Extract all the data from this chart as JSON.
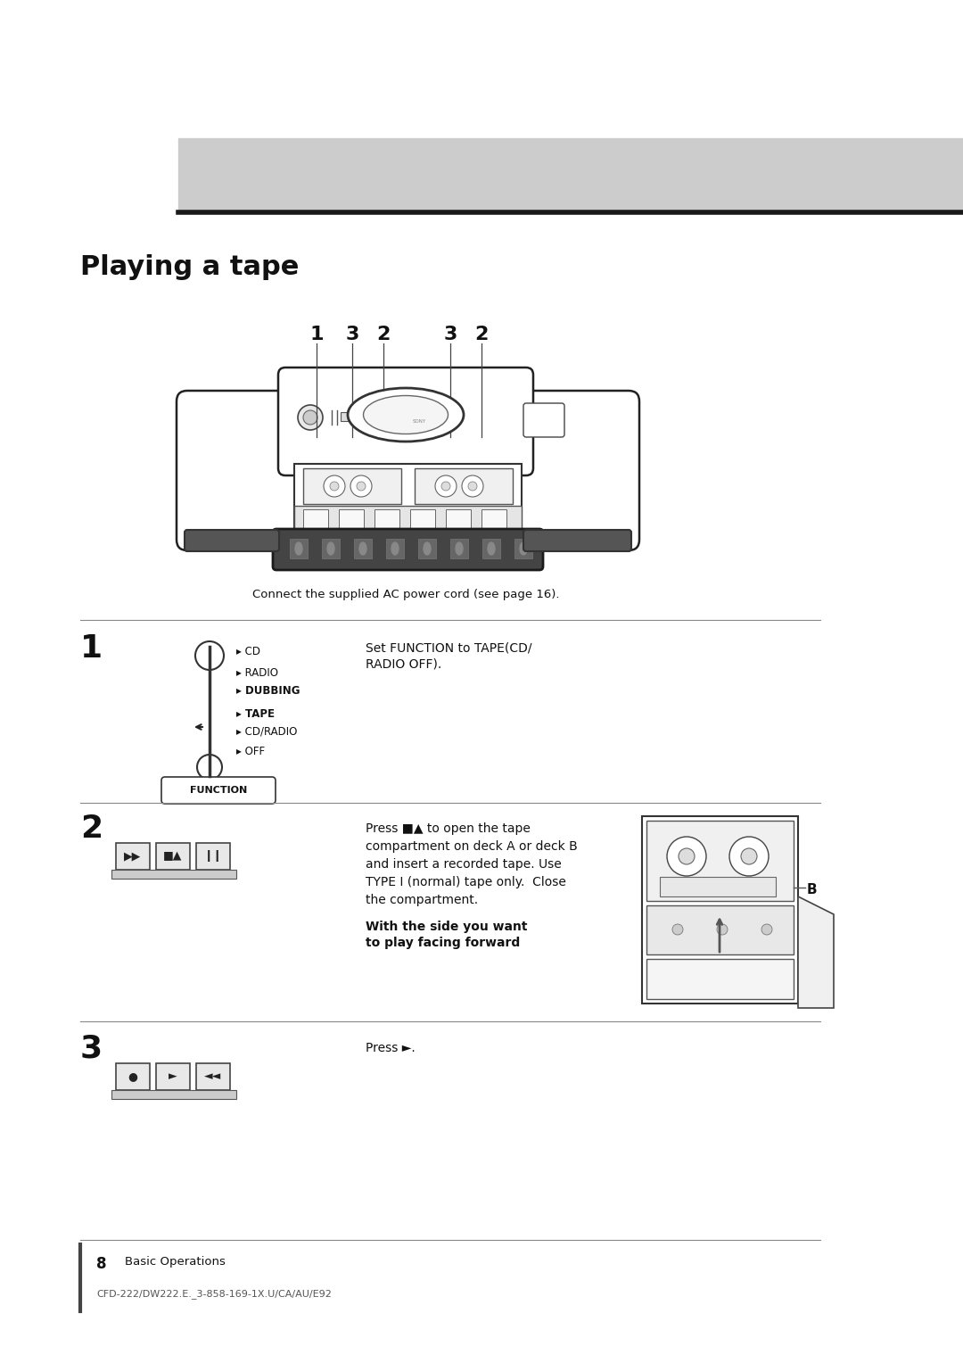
{
  "bg_color": "#ffffff",
  "page_width": 10.8,
  "page_height": 15.28,
  "header_band_color": "#cccccc",
  "header_line_color": "#1a1a1a",
  "title": "Playing a tape",
  "callout_numbers": [
    "1",
    "3",
    "2",
    "3",
    "2"
  ],
  "connect_text": "Connect the supplied AC power cord (see page 16).",
  "step1_text_line1": "Set FUNCTION to TAPE(CD/",
  "step1_text_line2": "RADIO OFF).",
  "step2_text_line1": "Press ■▲ to open the tape",
  "step2_text_line2": "compartment on deck A or deck B",
  "step2_text_line3": "and insert a recorded tape. Use",
  "step2_text_line4": "TYPE I (normal) tape only.  Close",
  "step2_text_line5": "the compartment.",
  "step2_bold_line1": "With the side you want",
  "step2_bold_line2": "to play facing forward",
  "step3_text": "Press ►.",
  "function_label": "FUNCTION",
  "function_options": [
    "CD",
    "RADIO",
    "DUBBING",
    "TAPE",
    "CD/RADIO",
    "OFF"
  ],
  "deck_b_label": "B",
  "page_num": "8",
  "page_label": "Basic Operations",
  "footer_text": "CFD-222/DW222.E._3-858-169-1X.U/CA/AU/E92"
}
